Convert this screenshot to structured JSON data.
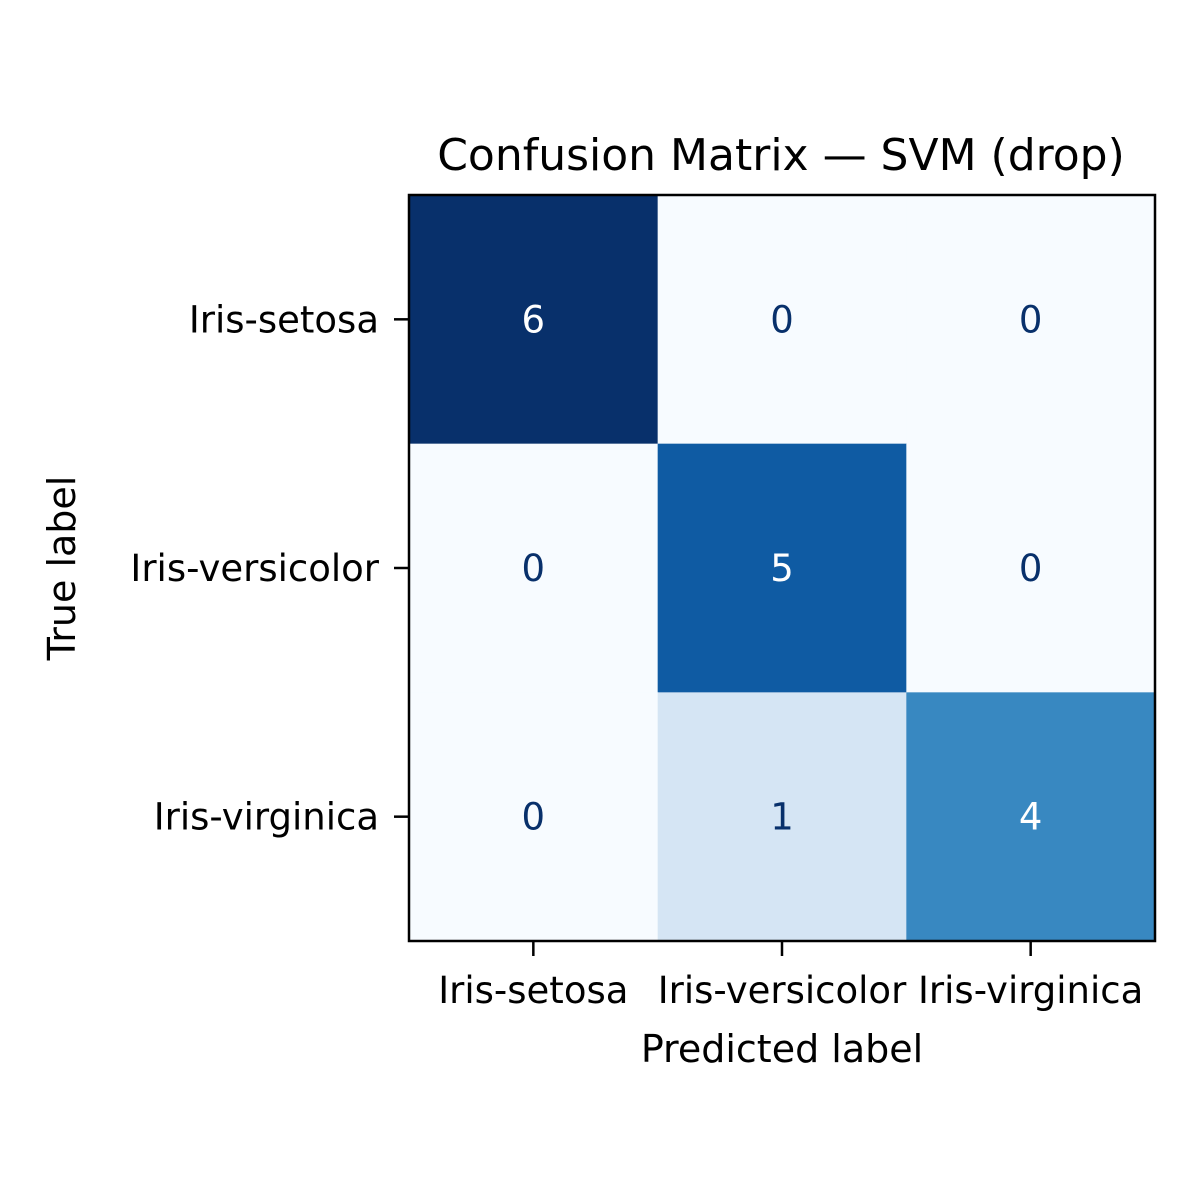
{
  "chart_data": {
    "type": "heatmap",
    "title": "Confusion Matrix — SVM (drop)",
    "xlabel": "Predicted label",
    "ylabel": "True label",
    "x_categories": [
      "Iris-setosa",
      "Iris-versicolor",
      "Iris-virginica"
    ],
    "y_categories": [
      "Iris-setosa",
      "Iris-versicolor",
      "Iris-virginica"
    ],
    "values": [
      [
        6,
        0,
        0
      ],
      [
        0,
        5,
        0
      ],
      [
        0,
        1,
        4
      ]
    ],
    "colormap": "Blues",
    "value_range": [
      0,
      6
    ],
    "colors": {
      "0": "#f7fbff",
      "1": "#d5e5f4",
      "4": "#3888c1",
      "5": "#0f5ba3",
      "6": "#08306b"
    },
    "text_colors": {
      "light": "#ffffff",
      "dark": "#08306b"
    },
    "grid": false
  }
}
